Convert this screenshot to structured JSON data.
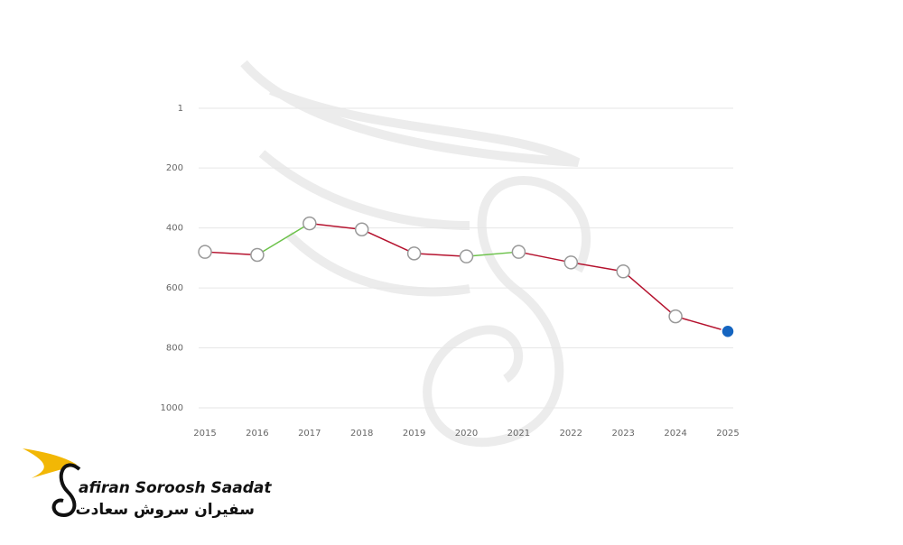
{
  "chart_data": {
    "type": "line",
    "categories": [
      "2015",
      "2016",
      "2017",
      "2018",
      "2019",
      "2020",
      "2021",
      "2022",
      "2023",
      "2024",
      "2025"
    ],
    "values": [
      480,
      490,
      385,
      405,
      485,
      495,
      480,
      515,
      545,
      695,
      745
    ],
    "ylim": [
      1,
      1000
    ],
    "yticks": [
      1,
      200,
      400,
      600,
      800,
      1000
    ],
    "y_inverted": true,
    "grid": true,
    "better_color": "#6cc24a",
    "worse_color": "#b5122e",
    "marker_fill": "#ffffff",
    "marker_stroke": "#999999",
    "last_point_color": "#1565c0"
  },
  "logo": {
    "latin": "afiran Soroosh Saadat",
    "persian": "سفیران سروش سعادت"
  }
}
